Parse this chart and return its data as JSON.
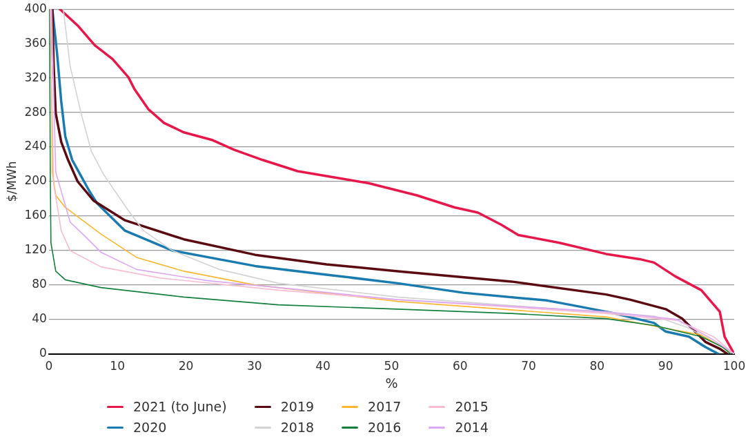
{
  "chart_data": {
    "type": "line",
    "xlabel": "%",
    "ylabel": "$/MWh",
    "xlim": [
      0,
      100
    ],
    "xticks": [
      0,
      10,
      20,
      30,
      40,
      50,
      60,
      70,
      80,
      90,
      100
    ],
    "ylim": [
      0,
      400
    ],
    "yticks": [
      0,
      40,
      80,
      120,
      160,
      200,
      240,
      280,
      320,
      360,
      400
    ],
    "grid": "y",
    "legend": "bottom",
    "marker": "none",
    "line_style": "solid",
    "series": [
      {
        "name": "2021 (to June)",
        "color": "#e8174a",
        "x": [
          1.6,
          4.2,
          6.7,
          9.3,
          11.6,
          12.5,
          14.5,
          16.8,
          19.7,
          23.9,
          27,
          31.2,
          36.3,
          41.5,
          46.7,
          53.7,
          59.2,
          62.6,
          66,
          68.5,
          74.5,
          81.3,
          86.2,
          88.3,
          91.4,
          95.2,
          97.9,
          98.6,
          100
        ],
        "values": [
          400,
          381,
          358,
          342,
          321,
          307,
          284,
          268,
          257,
          248,
          237,
          225,
          212,
          205,
          198,
          184,
          170,
          164,
          150,
          138,
          129,
          116,
          110,
          106,
          90,
          74,
          49,
          20,
          0
        ]
      },
      {
        "name": "2020",
        "color": "#1a7bb0",
        "x": [
          0.5,
          1.2,
          1.8,
          2.4,
          3.4,
          5.9,
          7,
          11.1,
          18,
          30.1,
          40.5,
          50.9,
          60.5,
          72.7,
          76.1,
          82,
          88.3,
          90,
          93.4,
          95.8,
          97.7
        ],
        "values": [
          400,
          348,
          293,
          252,
          225,
          189,
          175,
          143,
          120,
          102,
          92,
          82,
          71,
          62,
          57,
          48,
          36,
          26,
          20,
          8,
          0
        ]
      },
      {
        "name": "2019",
        "color": "#5a0a10",
        "x": [
          0.5,
          0.7,
          1.0,
          1.8,
          2.8,
          4.2,
          6.5,
          11.1,
          19.7,
          30.1,
          40.5,
          50.9,
          67.5,
          81.3,
          84.8,
          90,
          92.4,
          93.8,
          95.8,
          97.9,
          99
        ],
        "values": [
          400,
          334,
          279,
          246,
          225,
          200,
          178,
          155,
          133,
          115,
          104,
          96,
          84,
          69,
          63,
          52,
          41,
          30,
          14,
          6,
          0
        ]
      },
      {
        "name": "2018",
        "color": "#d3d3d3",
        "x": [
          2.1,
          3.1,
          4.7,
          6.2,
          8,
          11.1,
          12.1,
          13.8,
          18,
          24.9,
          33.5,
          50.9,
          74.5,
          88.3,
          93.4,
          100
        ],
        "values": [
          400,
          334,
          279,
          235,
          208,
          172,
          161,
          143,
          120,
          98,
          82,
          66,
          52,
          44,
          30,
          0
        ]
      },
      {
        "name": "2017",
        "color": "#fdb630",
        "x": [
          0.3,
          0.5,
          1,
          2.4,
          7.6,
          12.8,
          19.7,
          30.1,
          50.9,
          81.3,
          95.2,
          100
        ],
        "values": [
          400,
          211,
          184,
          170,
          139,
          112,
          96,
          80,
          61,
          43,
          22,
          0
        ]
      },
      {
        "name": "2016",
        "color": "#12803c",
        "x": [
          0.1,
          0.2,
          0.3,
          1,
          2.4,
          7.6,
          19.7,
          33.5,
          50.9,
          67.5,
          81.3,
          88.3,
          95.2,
          98.3,
          99.5
        ],
        "values": [
          400,
          211,
          129,
          96,
          86,
          77,
          66,
          57,
          52,
          47,
          41,
          33,
          20,
          8,
          0
        ]
      },
      {
        "name": "2015",
        "color": "#f9bcd4",
        "x": [
          0.2,
          0.7,
          1.8,
          3.1,
          7.6,
          16.3,
          33.5,
          50.9,
          81.3,
          91.7,
          97,
          100
        ],
        "values": [
          400,
          197,
          143,
          120,
          101,
          88,
          74,
          63,
          47,
          39,
          20,
          0
        ]
      },
      {
        "name": "2014",
        "color": "#dca8f5",
        "x": [
          0.4,
          1,
          3.1,
          5.2,
          7.6,
          12.8,
          23.2,
          33.5,
          50.9,
          81.3,
          91.7,
          97,
          100
        ],
        "values": [
          400,
          211,
          153,
          137,
          118,
          98,
          85,
          77,
          63,
          49,
          40,
          16,
          0
        ]
      }
    ]
  }
}
